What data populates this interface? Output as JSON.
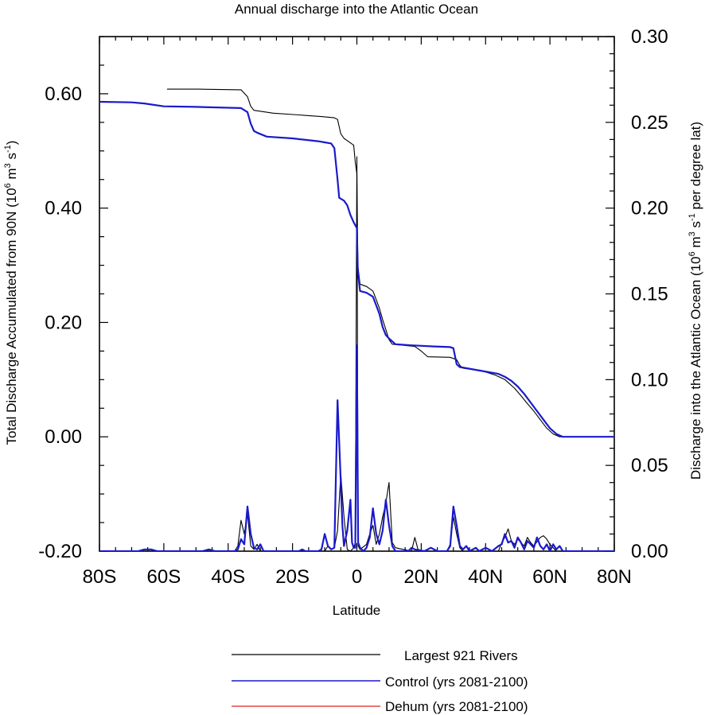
{
  "chart_data": {
    "type": "line",
    "title": "Annual discharge into the Atlantic Ocean",
    "xlabel": "Latitude",
    "ylabel_left": {
      "main": "Total Discharge Accumulated from 90N (10",
      "sup1": "6",
      "mid1": " m",
      "sup2": "3",
      "mid2": " s",
      "sup3": "-1",
      "end": ")"
    },
    "ylabel_right": {
      "main": "Discharge into the Atlantic Ocean (10",
      "sup1": "6",
      "mid1": " m",
      "sup2": "3",
      "mid2": " s",
      "sup3": "-1",
      "end": " per degree lat)"
    },
    "xlim": [
      -80,
      80
    ],
    "ylim_left": [
      -0.2,
      0.7
    ],
    "ylim_right": [
      0.0,
      0.3
    ],
    "x_ticks": [
      {
        "value": -80,
        "label": "80S"
      },
      {
        "value": -60,
        "label": "60S"
      },
      {
        "value": -40,
        "label": "40S"
      },
      {
        "value": -20,
        "label": "20S"
      },
      {
        "value": 0,
        "label": "0"
      },
      {
        "value": 20,
        "label": "20N"
      },
      {
        "value": 40,
        "label": "40N"
      },
      {
        "value": 60,
        "label": "60N"
      },
      {
        "value": 80,
        "label": "80N"
      }
    ],
    "y_left_ticks": [
      {
        "value": -0.2,
        "label": "-0.20"
      },
      {
        "value": 0.0,
        "label": "0.00"
      },
      {
        "value": 0.2,
        "label": "0.20"
      },
      {
        "value": 0.4,
        "label": "0.40"
      },
      {
        "value": 0.6,
        "label": "0.60"
      }
    ],
    "y_right_ticks": [
      {
        "value": 0.0,
        "label": "0.00"
      },
      {
        "value": 0.05,
        "label": "0.05"
      },
      {
        "value": 0.1,
        "label": "0.10"
      },
      {
        "value": 0.15,
        "label": "0.15"
      },
      {
        "value": 0.2,
        "label": "0.20"
      },
      {
        "value": 0.25,
        "label": "0.25"
      },
      {
        "value": 0.3,
        "label": "0.30"
      }
    ],
    "legend": {
      "position": "bottom-right",
      "entries": [
        {
          "label": "Largest 921 Rivers",
          "color": "#000000"
        },
        {
          "label": "Control (yrs 2081-2100)",
          "color": "#1a1acc"
        },
        {
          "label": "Dehum (yrs 2081-2100)",
          "color": "#e02020"
        }
      ]
    },
    "series": [
      {
        "name": "Largest 921 Rivers (accumulated)",
        "axis": "left",
        "color": "#000000",
        "points": [
          [
            -59,
            0.608
          ],
          [
            -49,
            0.608
          ],
          [
            -36,
            0.607
          ],
          [
            -34,
            0.595
          ],
          [
            -33,
            0.578
          ],
          [
            -32,
            0.571
          ],
          [
            -26,
            0.566
          ],
          [
            -18,
            0.563
          ],
          [
            -11,
            0.56
          ],
          [
            -7,
            0.558
          ],
          [
            -6,
            0.555
          ],
          [
            -5,
            0.53
          ],
          [
            -4,
            0.522
          ],
          [
            -3,
            0.518
          ],
          [
            -1,
            0.51
          ],
          [
            -0.5,
            0.48
          ],
          [
            0,
            0.46
          ],
          [
            0.3,
            0.3
          ],
          [
            1,
            0.267
          ],
          [
            3,
            0.263
          ],
          [
            5,
            0.255
          ],
          [
            6,
            0.24
          ],
          [
            7,
            0.225
          ],
          [
            8,
            0.205
          ],
          [
            10,
            0.17
          ],
          [
            11,
            0.162
          ],
          [
            18,
            0.158
          ],
          [
            20,
            0.15
          ],
          [
            22,
            0.14
          ],
          [
            29,
            0.139
          ],
          [
            31,
            0.135
          ],
          [
            32,
            0.125
          ],
          [
            33,
            0.12
          ],
          [
            39,
            0.115
          ],
          [
            43,
            0.108
          ],
          [
            46,
            0.1
          ],
          [
            47,
            0.095
          ],
          [
            49,
            0.085
          ],
          [
            51,
            0.072
          ],
          [
            53,
            0.058
          ],
          [
            55,
            0.045
          ],
          [
            57,
            0.03
          ],
          [
            59,
            0.015
          ],
          [
            61,
            0.005
          ],
          [
            63,
            0.0
          ],
          [
            80,
            0.0
          ]
        ]
      },
      {
        "name": "Control accumulated",
        "axis": "left",
        "color": "#1a1acc",
        "points": [
          [
            -80,
            0.586
          ],
          [
            -70,
            0.585
          ],
          [
            -66,
            0.583
          ],
          [
            -60,
            0.578
          ],
          [
            -50,
            0.577
          ],
          [
            -36,
            0.575
          ],
          [
            -34,
            0.568
          ],
          [
            -33,
            0.548
          ],
          [
            -32,
            0.535
          ],
          [
            -31,
            0.532
          ],
          [
            -28,
            0.525
          ],
          [
            -20,
            0.522
          ],
          [
            -12,
            0.517
          ],
          [
            -10,
            0.515
          ],
          [
            -8,
            0.513
          ],
          [
            -7,
            0.505
          ],
          [
            -6,
            0.45
          ],
          [
            -5.5,
            0.418
          ],
          [
            -4,
            0.413
          ],
          [
            -3,
            0.405
          ],
          [
            -2,
            0.388
          ],
          [
            -1,
            0.375
          ],
          [
            0,
            0.365
          ],
          [
            0.3,
            0.29
          ],
          [
            1,
            0.255
          ],
          [
            3,
            0.252
          ],
          [
            5,
            0.245
          ],
          [
            6,
            0.23
          ],
          [
            7,
            0.215
          ],
          [
            8,
            0.192
          ],
          [
            9,
            0.178
          ],
          [
            10,
            0.172
          ],
          [
            12,
            0.162
          ],
          [
            17,
            0.16
          ],
          [
            24,
            0.158
          ],
          [
            29,
            0.157
          ],
          [
            30,
            0.155
          ],
          [
            31,
            0.127
          ],
          [
            32,
            0.122
          ],
          [
            39,
            0.115
          ],
          [
            44,
            0.11
          ],
          [
            46,
            0.105
          ],
          [
            48,
            0.098
          ],
          [
            50,
            0.088
          ],
          [
            52,
            0.075
          ],
          [
            54,
            0.06
          ],
          [
            56,
            0.045
          ],
          [
            58,
            0.03
          ],
          [
            60,
            0.015
          ],
          [
            62,
            0.005
          ],
          [
            64,
            0.0
          ],
          [
            80,
            0.0
          ]
        ]
      },
      {
        "name": "Control per-lat",
        "axis": "right",
        "color": "#1a1acc",
        "points": [
          [
            -80,
            0.0
          ],
          [
            -68,
            0.0
          ],
          [
            -66,
            0.001
          ],
          [
            -64,
            0.001
          ],
          [
            -62,
            0.0
          ],
          [
            -48,
            0.0
          ],
          [
            -46,
            0.001
          ],
          [
            -44,
            0.0
          ],
          [
            -38,
            0.0
          ],
          [
            -37,
            0.001
          ],
          [
            -36,
            0.007
          ],
          [
            -35,
            0.004
          ],
          [
            -34,
            0.026
          ],
          [
            -33,
            0.01
          ],
          [
            -32,
            0.002
          ],
          [
            -31,
            0.001
          ],
          [
            -30,
            0.004
          ],
          [
            -29,
            0.0
          ],
          [
            -18,
            0.0
          ],
          [
            -17,
            0.001
          ],
          [
            -16,
            0.0
          ],
          [
            -12,
            0.0
          ],
          [
            -11,
            0.001
          ],
          [
            -10,
            0.01
          ],
          [
            -9,
            0.003
          ],
          [
            -8,
            0.001
          ],
          [
            -7,
            0.002
          ],
          [
            -6,
            0.088
          ],
          [
            -5,
            0.04
          ],
          [
            -4.5,
            0.015
          ],
          [
            -4,
            0.003
          ],
          [
            -3,
            0.012
          ],
          [
            -2,
            0.03
          ],
          [
            -1.5,
            0.005
          ],
          [
            -1,
            0.002
          ],
          [
            -0.5,
            0.002
          ],
          [
            0,
            0.12
          ],
          [
            0.4,
            0.005
          ],
          [
            1,
            0.002
          ],
          [
            2,
            0.0
          ],
          [
            3,
            0.002
          ],
          [
            4,
            0.008
          ],
          [
            5,
            0.025
          ],
          [
            6,
            0.01
          ],
          [
            7,
            0.004
          ],
          [
            8,
            0.012
          ],
          [
            9,
            0.03
          ],
          [
            10,
            0.015
          ],
          [
            11,
            0.003
          ],
          [
            12,
            0.0
          ],
          [
            16,
            0.0
          ],
          [
            17,
            0.002
          ],
          [
            18,
            0.001
          ],
          [
            21,
            0.0
          ],
          [
            23,
            0.002
          ],
          [
            25,
            0.0
          ],
          [
            28,
            0.0
          ],
          [
            29,
            0.003
          ],
          [
            30,
            0.026
          ],
          [
            31,
            0.015
          ],
          [
            32,
            0.003
          ],
          [
            33,
            0.001
          ],
          [
            34,
            0.003
          ],
          [
            35,
            0.0
          ],
          [
            37,
            0.002
          ],
          [
            38,
            0.0
          ],
          [
            40,
            0.002
          ],
          [
            42,
            0.0
          ],
          [
            44,
            0.003
          ],
          [
            45,
            0.004
          ],
          [
            46,
            0.01
          ],
          [
            47,
            0.005
          ],
          [
            48,
            0.006
          ],
          [
            49,
            0.002
          ],
          [
            50,
            0.008
          ],
          [
            51,
            0.005
          ],
          [
            52,
            0.001
          ],
          [
            53,
            0.006
          ],
          [
            54,
            0.004
          ],
          [
            55,
            0.002
          ],
          [
            56,
            0.008
          ],
          [
            57,
            0.003
          ],
          [
            58,
            0.001
          ],
          [
            59,
            0.004
          ],
          [
            60,
            0.0
          ],
          [
            61,
            0.004
          ],
          [
            62,
            0.001
          ],
          [
            63,
            0.003
          ],
          [
            64,
            0.0
          ],
          [
            80,
            0.0
          ]
        ]
      },
      {
        "name": "Largest 921 Rivers per-lat",
        "axis": "right",
        "color": "#000000",
        "points": [
          [
            -80,
            0.0
          ],
          [
            -38,
            0.0
          ],
          [
            -37,
            0.003
          ],
          [
            -36,
            0.018
          ],
          [
            -35,
            0.01
          ],
          [
            -34,
            0.022
          ],
          [
            -33,
            0.003
          ],
          [
            -32,
            0.001
          ],
          [
            -31,
            0.004
          ],
          [
            -30,
            0.0
          ],
          [
            -10,
            0.0
          ],
          [
            -9,
            0.003
          ],
          [
            -8,
            0.001
          ],
          [
            -7,
            0.002
          ],
          [
            -6,
            0.012
          ],
          [
            -5,
            0.045
          ],
          [
            -4,
            0.02
          ],
          [
            -3,
            0.001
          ],
          [
            -2,
            0.0
          ],
          [
            -1,
            0.002
          ],
          [
            -0.5,
            0.005
          ],
          [
            0,
            0.23
          ],
          [
            0.4,
            0.003
          ],
          [
            1,
            0.001
          ],
          [
            3,
            0.004
          ],
          [
            4,
            0.01
          ],
          [
            5,
            0.015
          ],
          [
            6,
            0.004
          ],
          [
            7,
            0.01
          ],
          [
            8,
            0.02
          ],
          [
            9,
            0.028
          ],
          [
            10,
            0.04
          ],
          [
            11,
            0.005
          ],
          [
            12,
            0.002
          ],
          [
            17,
            0.0
          ],
          [
            18,
            0.008
          ],
          [
            19,
            0.001
          ],
          [
            21,
            0.0
          ],
          [
            28,
            0.0
          ],
          [
            29,
            0.004
          ],
          [
            30,
            0.02
          ],
          [
            31,
            0.01
          ],
          [
            32,
            0.002
          ],
          [
            33,
            0.0
          ],
          [
            44,
            0.0
          ],
          [
            45,
            0.005
          ],
          [
            46,
            0.008
          ],
          [
            47,
            0.013
          ],
          [
            48,
            0.006
          ],
          [
            49,
            0.004
          ],
          [
            50,
            0.007
          ],
          [
            51,
            0.005
          ],
          [
            52,
            0.003
          ],
          [
            53,
            0.008
          ],
          [
            54,
            0.005
          ],
          [
            55,
            0.003
          ],
          [
            57,
            0.008
          ],
          [
            58,
            0.009
          ],
          [
            59,
            0.007
          ],
          [
            60,
            0.004
          ],
          [
            61,
            0.002
          ],
          [
            62,
            0.0
          ],
          [
            80,
            0.0
          ]
        ]
      }
    ]
  }
}
